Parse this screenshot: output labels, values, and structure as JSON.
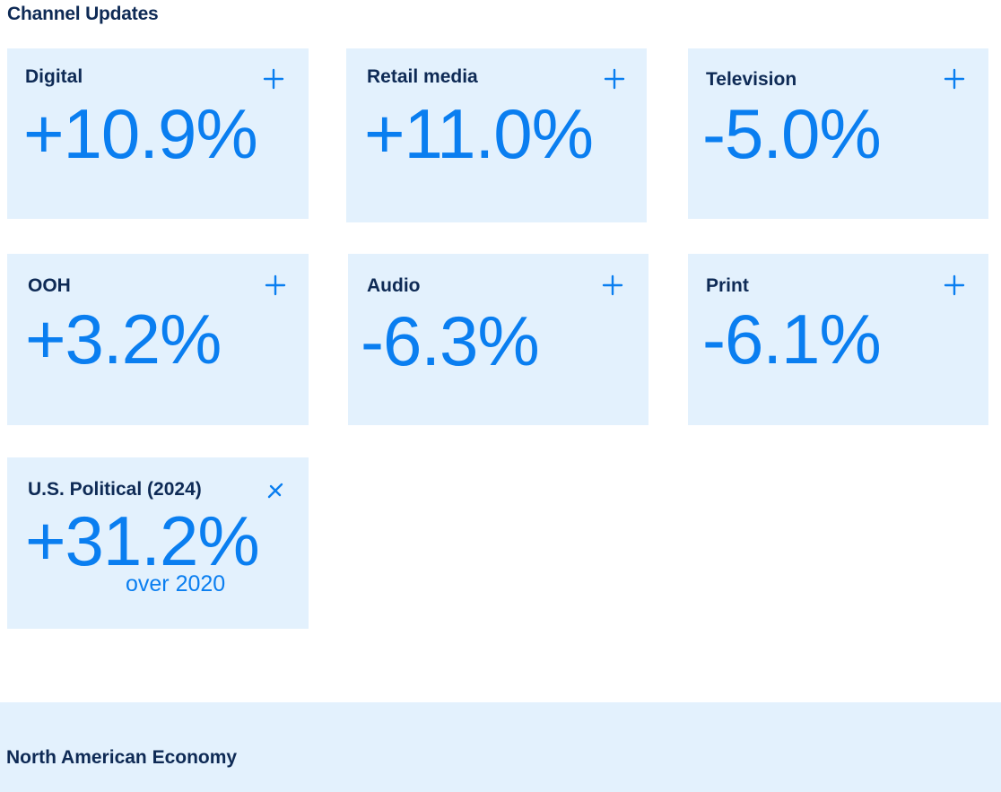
{
  "header": {
    "title": "Channel Updates"
  },
  "accent_color": "#0a7ef0",
  "heading_color": "#0e2a55",
  "card_background": "#e3f1fd",
  "cards": [
    {
      "label": "Digital",
      "value": "+10.9%",
      "button_icon": "plus-icon"
    },
    {
      "label": "Retail media",
      "value": "+11.0%",
      "button_icon": "plus-icon"
    },
    {
      "label": "Television",
      "value": "-5.0%",
      "button_icon": "plus-icon"
    },
    {
      "label": "OOH",
      "value": "+3.2%",
      "button_icon": "plus-icon"
    },
    {
      "label": "Audio",
      "value": "-6.3%",
      "button_icon": "plus-icon"
    },
    {
      "label": "Print",
      "value": "-6.1%",
      "button_icon": "plus-icon"
    },
    {
      "label": "U.S. Political (2024)",
      "value": "+31.2%",
      "subtext": "over 2020",
      "button_icon": "close-icon"
    }
  ],
  "next_section": {
    "title": "North American Economy"
  }
}
